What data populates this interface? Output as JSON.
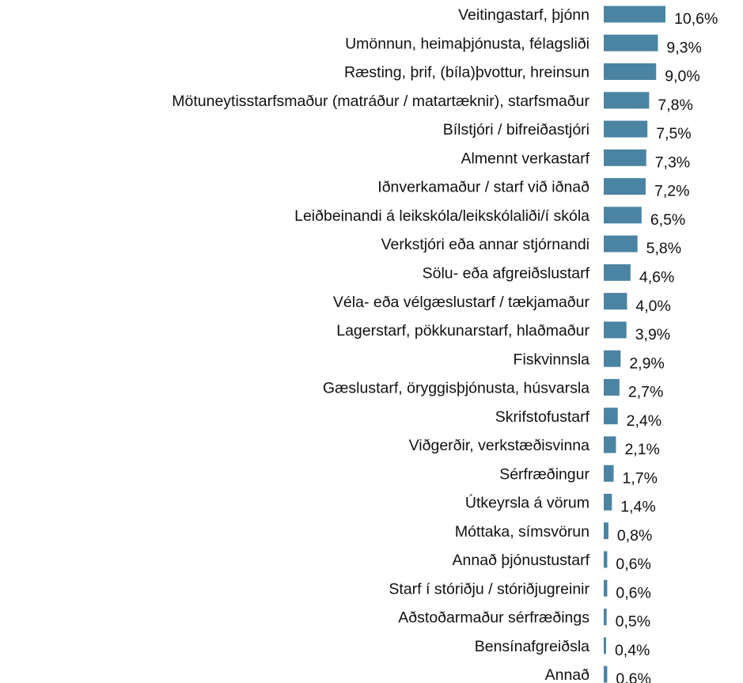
{
  "chart_data": {
    "type": "bar",
    "orientation": "horizontal",
    "color": "#4a84a2",
    "categories": [
      "Veitingastarf, þjónn",
      "Umönnun, heimaþjónusta, félagsliði",
      "Ræsting, þrif, (bíla)þvottur, hreinsun",
      "Mötuneytisstarfsmaður (matráður / matartæknir), starfsmaður",
      "Bílstjóri / bifreiðastjóri",
      "Almennt verkastarf",
      "Iðnverkamaður / starf við iðnað",
      "Leiðbeinandi á leikskóla/leikskólaliði/í skóla",
      "Verkstjóri eða annar stjórnandi",
      "Sölu- eða afgreiðslustarf",
      "Véla- eða vélgæslustarf / tækjamaður",
      "Lagerstarf, pökkunarstarf, hlaðmaður",
      "Fiskvinnsla",
      "Gæslustarf, öryggisþjónusta, húsvarsla",
      "Skrifstofustarf",
      "Viðgerðir, verkstæðisvinna",
      "Sérfræðingur",
      "Útkeyrsla á vörum",
      "Móttaka, símsvörun",
      "Annað þjónustustarf",
      "Starf í stóriðju / stóriðjugreinir",
      "Aðstoðarmaður sérfræðings",
      "Bensínafgreiðsla",
      "Annað"
    ],
    "values": [
      10.6,
      9.3,
      9.0,
      7.8,
      7.5,
      7.3,
      7.2,
      6.5,
      5.8,
      4.6,
      4.0,
      3.9,
      2.9,
      2.7,
      2.4,
      2.1,
      1.7,
      1.4,
      0.8,
      0.6,
      0.6,
      0.5,
      0.4,
      0.6
    ],
    "value_labels": [
      "10,6%",
      "9,3%",
      "9,0%",
      "7,8%",
      "7,5%",
      "7,3%",
      "7,2%",
      "6,5%",
      "5,8%",
      "4,6%",
      "4,0%",
      "3,9%",
      "2,9%",
      "2,7%",
      "2,4%",
      "2,1%",
      "1,7%",
      "1,4%",
      "0,8%",
      "0,6%",
      "0,6%",
      "0,5%",
      "0,4%",
      "0,6%"
    ]
  }
}
